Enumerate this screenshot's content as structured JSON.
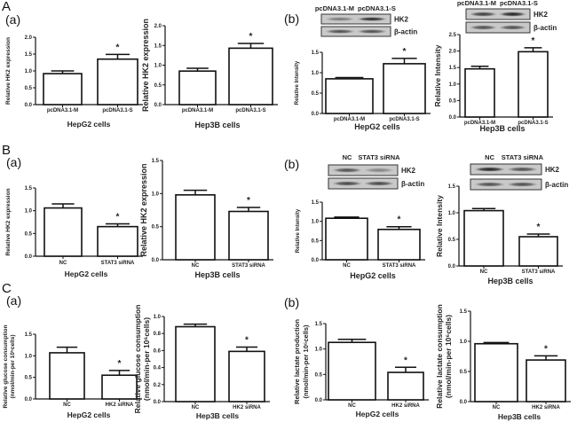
{
  "panels": {
    "A": "A",
    "Aa": "(a)",
    "Ab": "(b)",
    "B": "B",
    "Ba": "(a)",
    "Bb": "(b)",
    "C": "C",
    "Ca": "(a)",
    "Cb": "(b)"
  },
  "blots": [
    {
      "lanes": [
        "pcDNA3.1-M",
        "pcDNA3.1-S"
      ],
      "bands": [
        "HK2",
        "β-actin"
      ],
      "intensity": [
        [
          0.45,
          0.9
        ],
        [
          0.7,
          0.7
        ]
      ]
    },
    {
      "lanes": [
        "pcDNA3.1-M",
        "pcDNA3.1-S"
      ],
      "bands": [
        "HK2",
        "β-actin"
      ],
      "intensity": [
        [
          0.8,
          0.95
        ],
        [
          0.7,
          0.7
        ]
      ]
    },
    {
      "lanes": [
        "NC",
        "STAT3 siRNA"
      ],
      "bands": [
        "HK2",
        "β-actin"
      ],
      "intensity": [
        [
          0.7,
          0.4
        ],
        [
          0.75,
          0.75
        ]
      ]
    },
    {
      "lanes": [
        "NC",
        "STAT3 siRNA"
      ],
      "bands": [
        "HK2",
        "β-actin"
      ],
      "intensity": [
        [
          0.95,
          0.7
        ],
        [
          0.7,
          0.7
        ]
      ]
    }
  ],
  "chart_data": [
    {
      "type": "bar",
      "panel": "A(a)",
      "categories": [
        "pcDNA3.1-M",
        "pcDNA3.1-S"
      ],
      "values": [
        0.92,
        1.35
      ],
      "errors": [
        0.08,
        0.14
      ],
      "significance": [
        "",
        "*"
      ],
      "xlabel": "HepG2 cells",
      "ylabel": [
        "Relative HK2 expression"
      ],
      "ylim": [
        0,
        2.0
      ],
      "yticks": [
        "0.0",
        "0.5",
        "1.0",
        "1.5",
        "2.0"
      ]
    },
    {
      "type": "bar",
      "panel": "A(a)",
      "categories": [
        "pcDNA3.1-M",
        "pcDNA3.1-S"
      ],
      "values": [
        0.85,
        1.43
      ],
      "errors": [
        0.07,
        0.12
      ],
      "significance": [
        "",
        "*"
      ],
      "xlabel": "Hep3B cells",
      "ylabel": [
        "Relative HK2 expression"
      ],
      "ylim": [
        0,
        2.0
      ],
      "yticks": [
        "0.0",
        "0.5",
        "1.0",
        "1.5",
        "2.0"
      ]
    },
    {
      "type": "bar",
      "panel": "A(b)",
      "categories": [
        "pcDNA3.1-M",
        "pcDNA3.1-S"
      ],
      "values": [
        0.85,
        1.22
      ],
      "errors": [
        0.03,
        0.13
      ],
      "significance": [
        "",
        "*"
      ],
      "xlabel": "HepG2 cells",
      "ylabel": [
        "Relative Intensity"
      ],
      "ylim": [
        0,
        1.5
      ],
      "yticks": [
        "0.0",
        "0.5",
        "1.0",
        "1.5"
      ]
    },
    {
      "type": "bar",
      "panel": "A(b)",
      "categories": [
        "pcDNA3.1-M",
        "pcDNA3.1-S"
      ],
      "values": [
        1.46,
        1.98
      ],
      "errors": [
        0.08,
        0.12
      ],
      "significance": [
        "",
        "*"
      ],
      "xlabel": "Hep3B cells",
      "ylabel": [
        "Relative Intensity"
      ],
      "ylim": [
        0,
        2.5
      ],
      "yticks": [
        "0.0",
        "0.5",
        "1.0",
        "1.5",
        "2.0",
        "2.5"
      ]
    },
    {
      "type": "bar",
      "panel": "B(a)",
      "categories": [
        "NC",
        "STAT3 siRNA"
      ],
      "values": [
        1.06,
        0.65
      ],
      "errors": [
        0.09,
        0.06
      ],
      "significance": [
        "",
        "*"
      ],
      "xlabel": "HepG2 cells",
      "ylabel": [
        "Relative HK2 expression"
      ],
      "ylim": [
        0,
        1.5
      ],
      "yticks": [
        "0.0",
        "0.5",
        "1.0",
        "1.5"
      ]
    },
    {
      "type": "bar",
      "panel": "B(a)",
      "categories": [
        "NC",
        "STAT3 siRNA"
      ],
      "values": [
        0.98,
        0.73
      ],
      "errors": [
        0.07,
        0.06
      ],
      "significance": [
        "",
        "*"
      ],
      "xlabel": "Hep3B cells",
      "ylabel": [
        "Relative HK2 expression"
      ],
      "ylim": [
        0,
        1.5
      ],
      "yticks": [
        "0.0",
        "0.5",
        "1.0",
        "1.5"
      ]
    },
    {
      "type": "bar",
      "panel": "B(b)",
      "categories": [
        "NC",
        "STAT3 siRNA"
      ],
      "values": [
        1.08,
        0.79
      ],
      "errors": [
        0.03,
        0.07
      ],
      "significance": [
        "",
        "*"
      ],
      "xlabel": "HepG2 cells",
      "ylabel": [
        "Relative Intensity"
      ],
      "ylim": [
        0,
        1.5
      ],
      "yticks": [
        "0.0",
        "0.5",
        "1.0",
        "1.5"
      ]
    },
    {
      "type": "bar",
      "panel": "B(b)",
      "categories": [
        "NC",
        "STAT3 siRNA"
      ],
      "values": [
        1.04,
        0.55
      ],
      "errors": [
        0.04,
        0.05
      ],
      "significance": [
        "",
        "*"
      ],
      "xlabel": "Hep3B cells",
      "ylabel": [
        "Relative Intensity"
      ],
      "ylim": [
        0,
        1.5
      ],
      "yticks": [
        "0.0",
        "0.5",
        "1.0",
        "1.5"
      ]
    },
    {
      "type": "bar",
      "panel": "C(a)",
      "categories": [
        "NC",
        "HK2 siRNA"
      ],
      "values": [
        1.07,
        0.55
      ],
      "errors": [
        0.13,
        0.11
      ],
      "significance": [
        "",
        "*"
      ],
      "xlabel": "HepG2 cells",
      "ylabel": [
        "Relative glucose consumption",
        "(nmol/min-per 10⁶cells)"
      ],
      "ylim": [
        0,
        1.5
      ],
      "yticks": [
        "0.0",
        "0.5",
        "1.0",
        "1.5"
      ]
    },
    {
      "type": "bar",
      "panel": "C(a)",
      "categories": [
        "NC",
        "HK2 siRNA"
      ],
      "values": [
        0.88,
        0.59
      ],
      "errors": [
        0.03,
        0.05
      ],
      "significance": [
        "",
        "*"
      ],
      "xlabel": "Hep3B cells",
      "ylabel": [
        "Relative glucose consumption",
        "(nmol/min-per 10⁶cells)"
      ],
      "ylim": [
        0,
        1.0
      ],
      "yticks": [
        "0.0",
        "0.2",
        "0.4",
        "0.6",
        "0.8",
        "1.0"
      ]
    },
    {
      "type": "bar",
      "panel": "C(b)",
      "categories": [
        "NC",
        "HK2 siRNA"
      ],
      "values": [
        1.13,
        0.54
      ],
      "errors": [
        0.06,
        0.1
      ],
      "significance": [
        "",
        "*"
      ],
      "xlabel": "HepG2 cells",
      "ylabel": [
        "Relative lactate production",
        "(nmol/min-per 10⁶cells)"
      ],
      "ylim": [
        0,
        1.5
      ],
      "yticks": [
        "0.0",
        "0.5",
        "1.0",
        "1.5"
      ]
    },
    {
      "type": "bar",
      "panel": "C(b)",
      "categories": [
        "NC",
        "HK2 siRNA"
      ],
      "values": [
        0.96,
        0.69
      ],
      "errors": [
        0.02,
        0.07
      ],
      "significance": [
        "",
        "*"
      ],
      "xlabel": "Hep3B cells",
      "ylabel": [
        "Relative lactate consumption",
        "(nmol/min-per 10⁶cells)"
      ],
      "ylim": [
        0,
        1.5
      ],
      "yticks": [
        "0.0",
        "0.5",
        "1.0",
        "1.5"
      ]
    }
  ]
}
